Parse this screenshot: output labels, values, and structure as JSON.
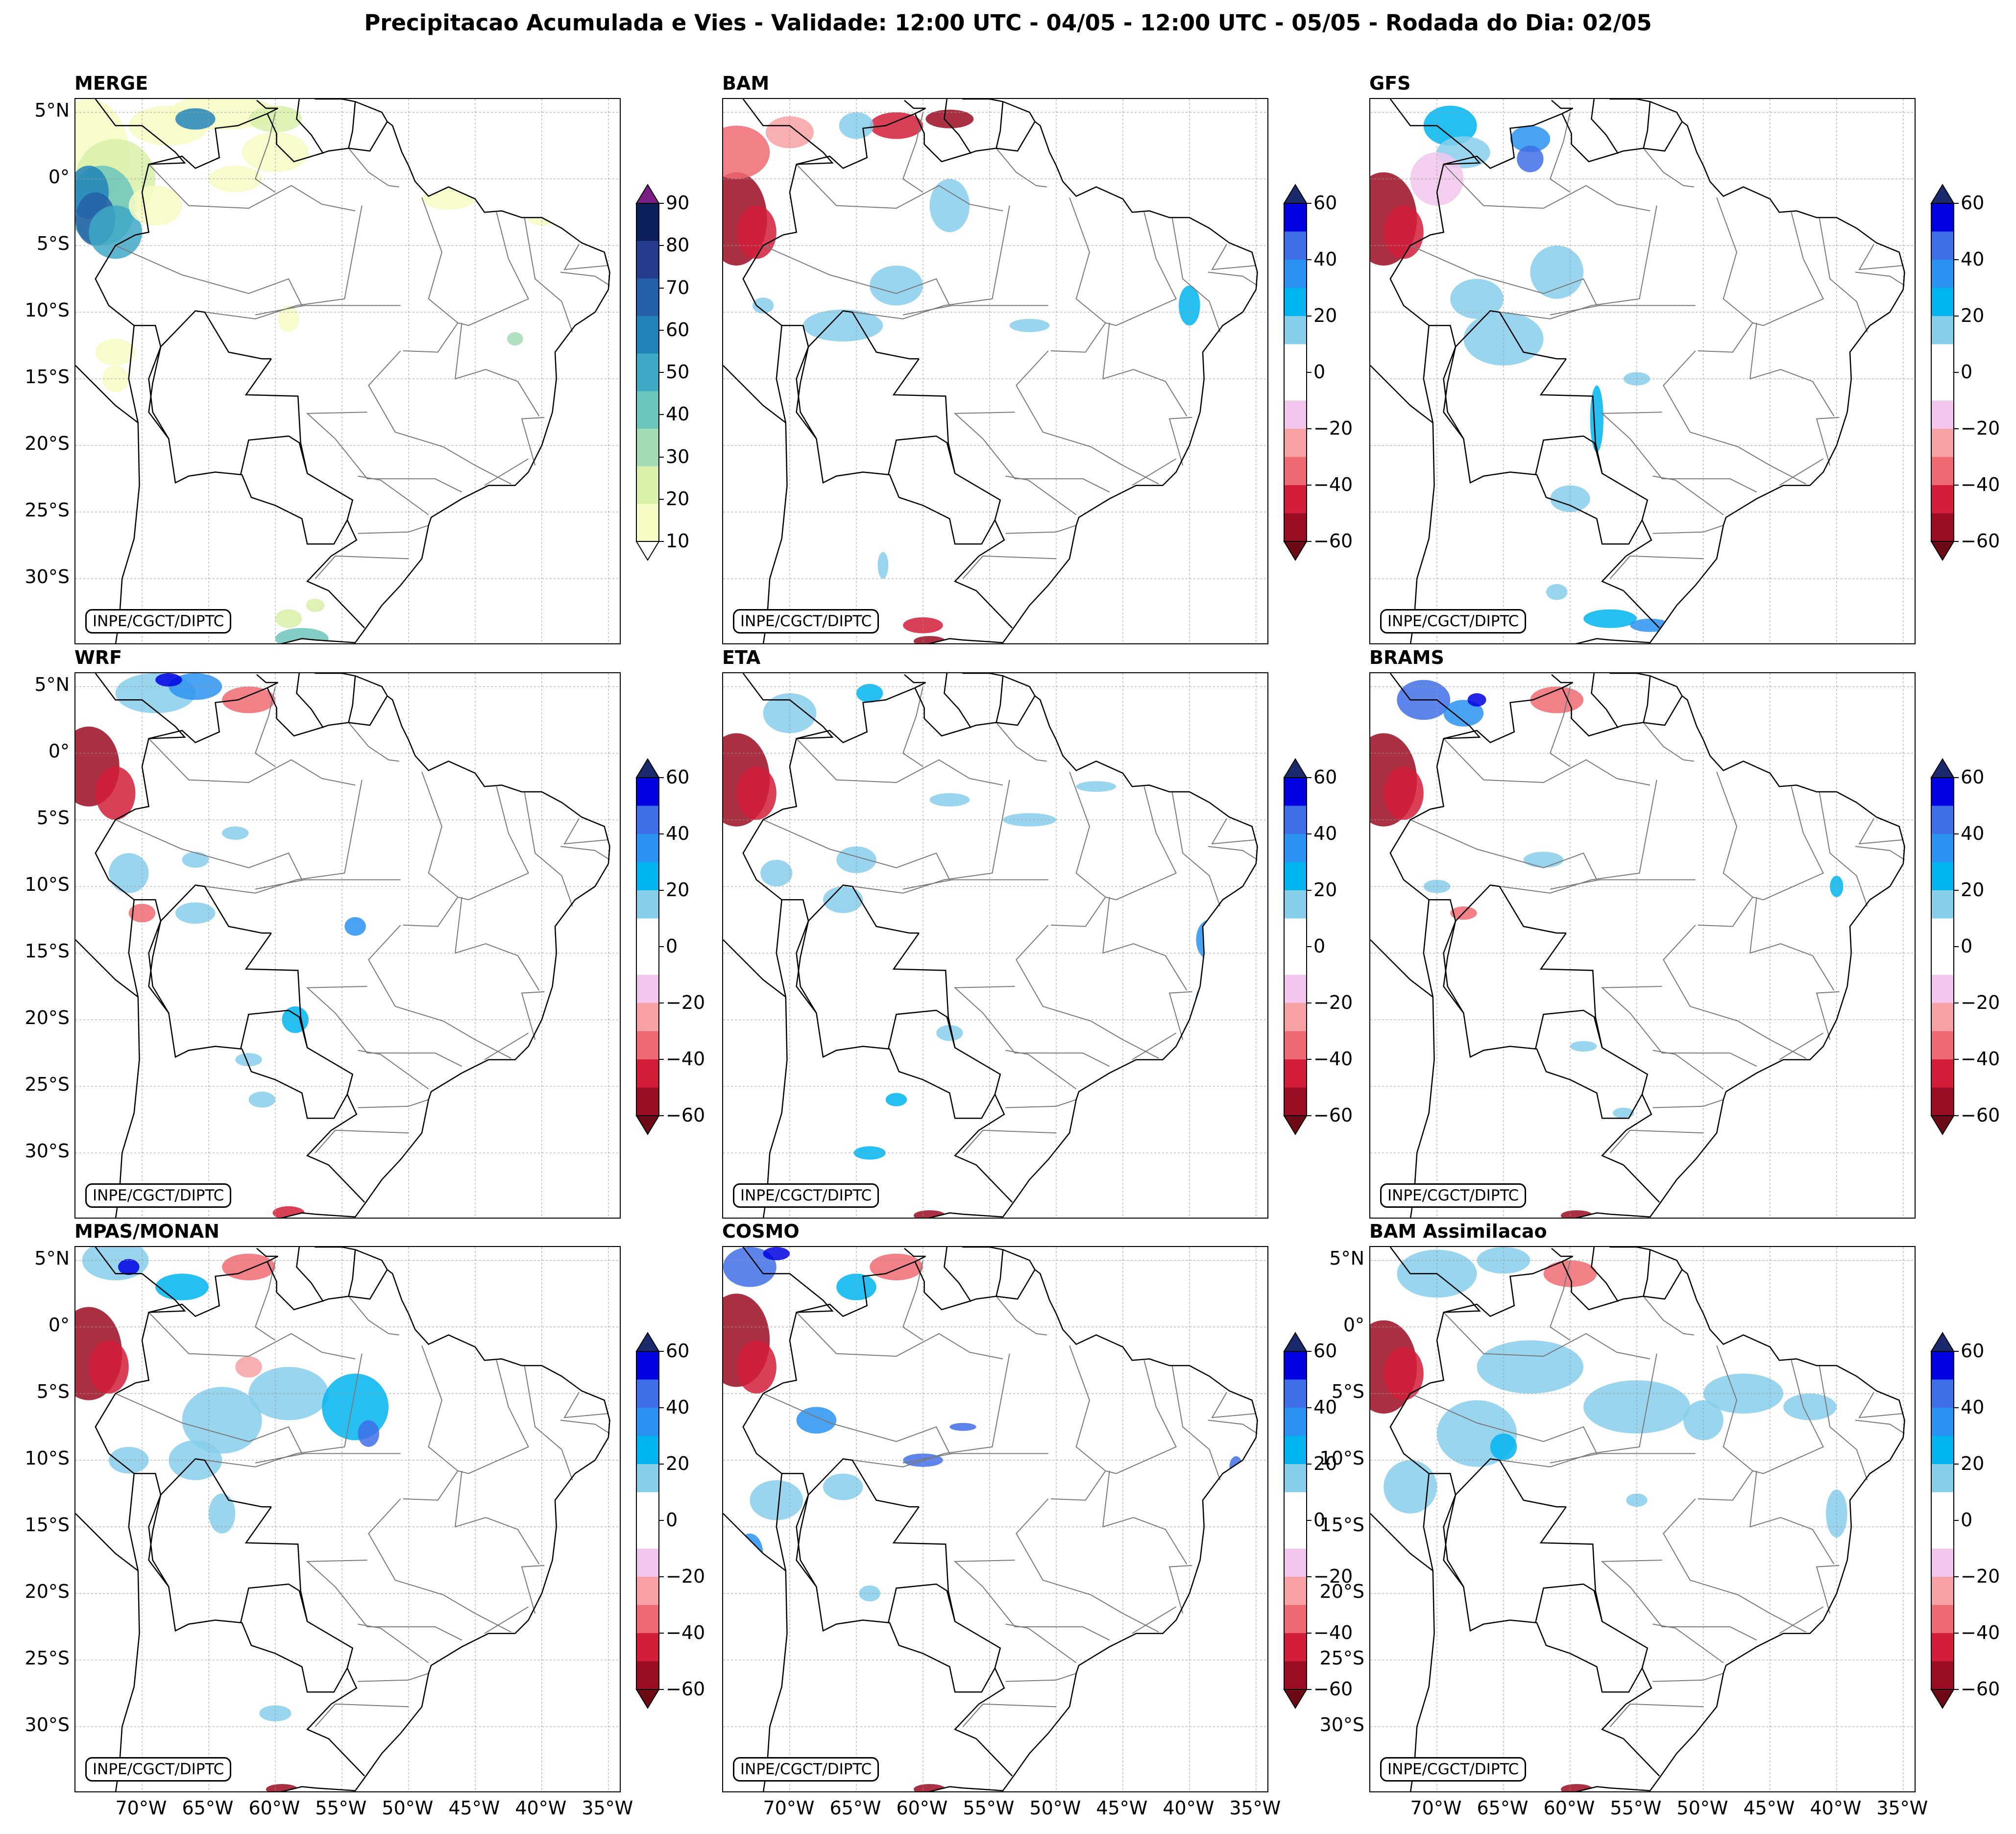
{
  "figure": {
    "title": "Precipitacao Acumulada e Vies - Validade: 12:00 UTC - 04/05 - 12:00 UTC - 05/05 - Rodada do Dia: 02/05",
    "credit": "INPE/CGCT/DIPTC"
  },
  "axes": {
    "lat_labels": [
      "5°N",
      "0°",
      "5°S",
      "10°S",
      "15°S",
      "20°S",
      "25°S",
      "30°S"
    ],
    "lon_labels": [
      "70°W",
      "65°W",
      "60°W",
      "55°W",
      "50°W",
      "45°W",
      "40°W",
      "35°W"
    ]
  },
  "colorbars": {
    "merge": {
      "ticks": [
        "10",
        "20",
        "30",
        "40",
        "50",
        "60",
        "70",
        "80",
        "90"
      ],
      "colors": [
        "#f7fcc4",
        "#d8f0a8",
        "#a3dbb5",
        "#6cc5bd",
        "#3ea8c6",
        "#2284b8",
        "#2460a7",
        "#243b8e",
        "#0c1f5b"
      ],
      "extend_top_color": "#7b1f86",
      "extend_bottom_color": "#ffffff"
    },
    "bias": {
      "ticks": [
        "60",
        "40",
        "20",
        "0",
        "−20",
        "−40",
        "−60"
      ],
      "colors": [
        "#0000e0",
        "#3f6fe8",
        "#2a92f0",
        "#00b4f0",
        "#87ceeb",
        "#ffffff",
        "#ffffff",
        "#f1c5ec",
        "#f7a1a5",
        "#ee6a72",
        "#d41d3b",
        "#9b0d22"
      ],
      "extend_top_color": "#1a2a6c",
      "extend_bottom_color": "#6e0a16"
    }
  },
  "panels": [
    {
      "title": "MERGE",
      "kind": "merge"
    },
    {
      "title": "BAM",
      "kind": "bias"
    },
    {
      "title": "GFS",
      "kind": "bias"
    },
    {
      "title": "WRF",
      "kind": "bias"
    },
    {
      "title": "ETA",
      "kind": "bias"
    },
    {
      "title": "BRAMS",
      "kind": "bias"
    },
    {
      "title": "MPAS/MONAN",
      "kind": "bias"
    },
    {
      "title": "COSMO",
      "kind": "bias"
    },
    {
      "title": "BAM Assimilacao",
      "kind": "bias"
    }
  ]
}
